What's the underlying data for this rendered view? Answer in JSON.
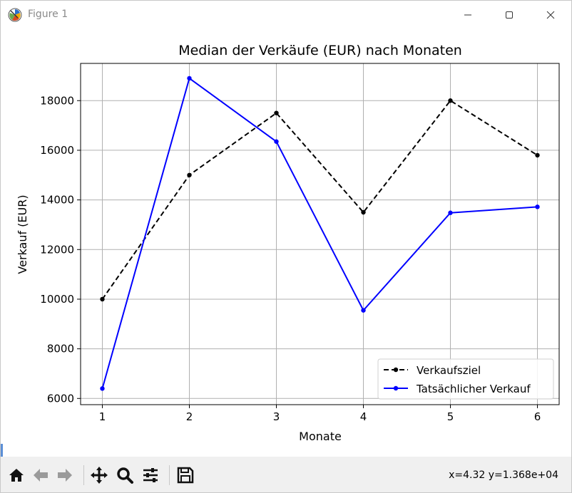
{
  "window": {
    "title": "Figure 1",
    "controls": [
      "minimize",
      "maximize",
      "close"
    ]
  },
  "toolbar": {
    "tools": [
      "home-icon",
      "back-icon",
      "forward-icon",
      "pan-icon",
      "zoom-icon",
      "configure-subplots-icon",
      "save-icon"
    ],
    "coordinates": "x=4.32 y=1.368e+04"
  },
  "chart_data": {
    "type": "line",
    "title": "Median der Verkäufe (EUR) nach Monaten",
    "xlabel": "Monate",
    "ylabel": "Verkauf (EUR)",
    "x": [
      1,
      2,
      3,
      4,
      5,
      6
    ],
    "xlim": [
      0.75,
      6.25
    ],
    "ylim": [
      5750,
      19500
    ],
    "xticks": [
      1,
      2,
      3,
      4,
      5,
      6
    ],
    "yticks": [
      6000,
      8000,
      10000,
      12000,
      14000,
      16000,
      18000
    ],
    "grid": true,
    "legend_position": "lower right",
    "series": [
      {
        "name": "Verkaufsziel",
        "color": "#000000",
        "linestyle": "dashed",
        "marker": "point",
        "values": [
          10000,
          15000,
          17500,
          13500,
          18000,
          15800
        ]
      },
      {
        "name": "Tatsächlicher Verkauf",
        "color": "#0000ff",
        "linestyle": "solid",
        "marker": "point",
        "values": [
          6400,
          18900,
          16350,
          9550,
          13480,
          13720
        ]
      }
    ]
  }
}
